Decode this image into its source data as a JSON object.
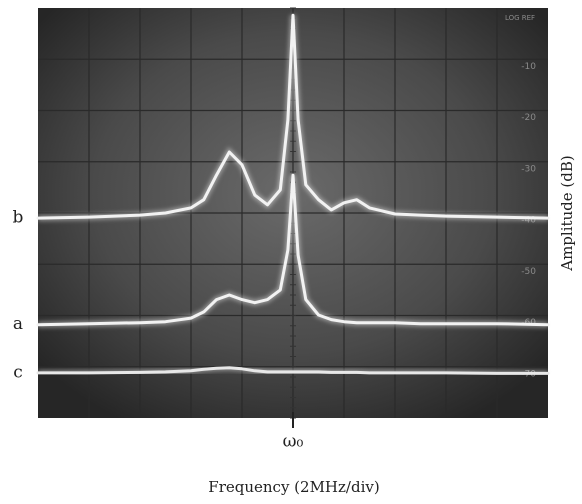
{
  "chart_data": {
    "type": "line",
    "x_label": "Frequency (2MHz/div)",
    "y_label": "Amplitude (dB)",
    "screen_label": "LOG REF",
    "xlim": [
      -10,
      10
    ],
    "ylim": [
      -80,
      0
    ],
    "xticks": [
      {
        "value": 0,
        "label": "ω₀"
      }
    ],
    "yticks": [
      -70,
      -60,
      -50,
      -40,
      -30,
      -20,
      -10
    ],
    "grid": true,
    "x": [
      -10,
      -8,
      -6,
      -5,
      -4,
      -3.5,
      -3,
      -2.5,
      -2,
      -1.5,
      -1,
      -0.5,
      -0.2,
      0,
      0.2,
      0.5,
      1,
      1.5,
      2,
      2.5,
      3,
      4,
      5,
      6,
      8,
      10
    ],
    "series": [
      {
        "name": "b",
        "color": "#f2f2f2",
        "values": [
          -41.0,
          -40.8,
          -40.4,
          -40.0,
          -39.0,
          -37.4,
          -32.6,
          -28.1,
          -30.6,
          -36.5,
          -38.4,
          -35.5,
          -21.8,
          -1.4,
          -21.8,
          -34.5,
          -37.4,
          -39.4,
          -38.0,
          -37.4,
          -39.0,
          -40.2,
          -40.4,
          -40.6,
          -40.8,
          -41.0
        ]
      },
      {
        "name": "a",
        "color": "#f2f2f2",
        "values": [
          -61.8,
          -61.6,
          -61.4,
          -61.2,
          -60.5,
          -59.3,
          -56.9,
          -56.0,
          -56.9,
          -57.5,
          -56.9,
          -55.0,
          -47.2,
          -32.6,
          -48.2,
          -56.9,
          -59.9,
          -60.8,
          -61.2,
          -61.4,
          -61.4,
          -61.4,
          -61.6,
          -61.6,
          -61.6,
          -61.8
        ]
      },
      {
        "name": "c",
        "color": "#e8e8e8",
        "values": [
          -71.2,
          -71.2,
          -71.1,
          -71.0,
          -70.8,
          -70.5,
          -70.3,
          -70.2,
          -70.4,
          -70.8,
          -71.0,
          -71.0,
          -71.0,
          -71.0,
          -71.0,
          -71.0,
          -71.0,
          -71.1,
          -71.1,
          -71.1,
          -71.2,
          -71.2,
          -71.2,
          -71.2,
          -71.3,
          -71.3
        ]
      }
    ]
  }
}
